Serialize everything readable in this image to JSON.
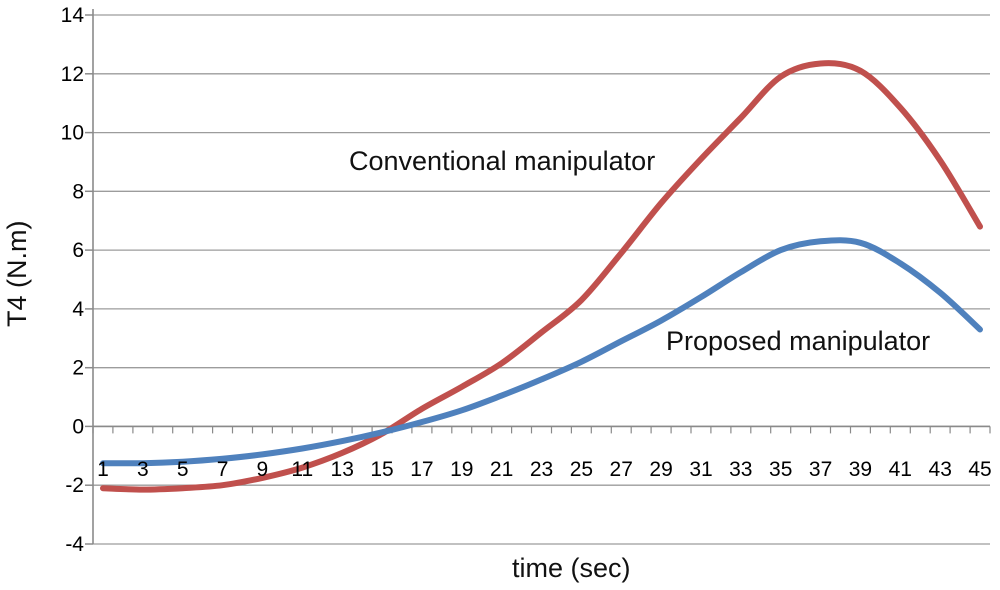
{
  "chart_data": {
    "type": "line",
    "title": "",
    "xlabel": "time (sec)",
    "ylabel": "T4 (N.m)",
    "categories": [
      1,
      3,
      5,
      7,
      9,
      11,
      13,
      15,
      17,
      19,
      21,
      23,
      25,
      27,
      29,
      31,
      33,
      35,
      37,
      39,
      41,
      43,
      45
    ],
    "x_tick_labels": [
      "1",
      "3",
      "5",
      "7",
      "9",
      "11",
      "13",
      "15",
      "17",
      "19",
      "21",
      "23",
      "25",
      "27",
      "29",
      "31",
      "33",
      "35",
      "37",
      "39",
      "41",
      "43",
      "45"
    ],
    "ylim": [
      -4,
      14
    ],
    "ytick_step": 2,
    "y_tick_labels": [
      "14",
      "12",
      "10",
      "8",
      "6",
      "4",
      "2",
      "0",
      "-2",
      "-4"
    ],
    "grid": "horizontal-only",
    "legend_position": "inline-annotations",
    "series": [
      {
        "name": "Conventional manipulator",
        "color": "#C0504D",
        "values": [
          -2.1,
          -2.15,
          -2.1,
          -2.0,
          -1.75,
          -1.4,
          -0.9,
          -0.25,
          0.6,
          1.35,
          2.15,
          3.2,
          4.3,
          5.9,
          7.6,
          9.1,
          10.5,
          11.9,
          12.35,
          12.1,
          10.85,
          9.05,
          6.8
        ]
      },
      {
        "name": "Proposed manipulator",
        "color": "#4F81BD",
        "values": [
          -1.25,
          -1.25,
          -1.2,
          -1.1,
          -0.95,
          -0.75,
          -0.5,
          -0.2,
          0.15,
          0.55,
          1.05,
          1.6,
          2.2,
          2.9,
          3.6,
          4.4,
          5.25,
          6.0,
          6.3,
          6.25,
          5.55,
          4.55,
          3.3
        ]
      }
    ]
  },
  "colors": {
    "conventional_line": "#C0504D",
    "proposed_line": "#4F81BD",
    "gridline": "#9C9C9C",
    "axis": "#8A8A8A",
    "text": "#000000",
    "background": "#FFFFFF"
  }
}
